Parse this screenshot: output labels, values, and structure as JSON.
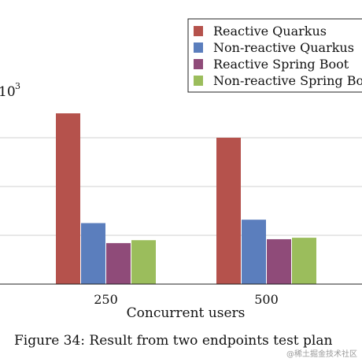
{
  "chart_data": {
    "type": "bar",
    "categories": [
      "250",
      "500"
    ],
    "series": [
      {
        "name": "Reactive Quarkus",
        "color": "#b5524c",
        "values": [
          3.5,
          3.0
        ]
      },
      {
        "name": "Non-reactive Quarkus",
        "color": "#5b7ebd",
        "values": [
          1.25,
          1.32
        ]
      },
      {
        "name": "Reactive Spring Boot",
        "color": "#8f4b79",
        "values": [
          0.84,
          0.92
        ]
      },
      {
        "name": "Non-reactive Spring Boot",
        "color": "#9bbd5c",
        "values": [
          0.9,
          0.95
        ]
      }
    ],
    "xlabel": "Concurrent users",
    "ylabel_exponent": "10",
    "ylabel_exponent_power": "3",
    "ylim": [
      0,
      4
    ],
    "grid": "horizontal",
    "legend_position": "top-right"
  },
  "caption": "Figure 34: Result from two endpoints test plan",
  "watermark": "@稀土掘金技术社区"
}
